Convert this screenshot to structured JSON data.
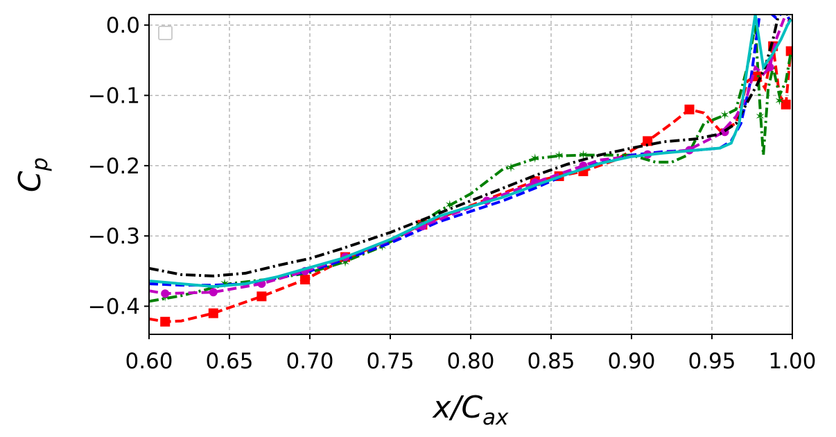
{
  "chart_data": {
    "type": "line",
    "xlabel_main": "x/C",
    "xlabel_sub": "ax",
    "ylabel_main": "C",
    "ylabel_sub": "p",
    "xlim": [
      0.6,
      1.0
    ],
    "ylim": [
      -0.44,
      0.015
    ],
    "xticks": [
      0.6,
      0.65,
      0.7,
      0.75,
      0.8,
      0.85,
      0.9,
      0.95,
      1.0
    ],
    "xtick_labels": [
      "0.60",
      "0.65",
      "0.70",
      "0.75",
      "0.80",
      "0.85",
      "0.90",
      "0.95",
      "1.00"
    ],
    "yticks": [
      0.0,
      -0.1,
      -0.2,
      -0.3,
      -0.4
    ],
    "ytick_labels": [
      "0.0",
      "−0.1",
      "−0.2",
      "−0.3",
      "−0.4"
    ],
    "grid": true,
    "legend": "top-left (empty)",
    "series": [
      {
        "color": "#ff0000",
        "style": "dashed",
        "marker": "square",
        "x": [
          0.6,
          0.61,
          0.62,
          0.64,
          0.67,
          0.697,
          0.72,
          0.75,
          0.77,
          0.79,
          0.81,
          0.84,
          0.855,
          0.87,
          0.89,
          0.91,
          0.925,
          0.936,
          0.945,
          0.955,
          0.965,
          0.972,
          0.978,
          0.983,
          0.988,
          0.992,
          0.996,
          0.999
        ],
        "y": [
          -0.418,
          -0.422,
          -0.421,
          -0.41,
          -0.386,
          -0.362,
          -0.335,
          -0.305,
          -0.284,
          -0.266,
          -0.248,
          -0.222,
          -0.215,
          -0.208,
          -0.192,
          -0.165,
          -0.14,
          -0.12,
          -0.125,
          -0.15,
          -0.14,
          -0.08,
          -0.07,
          -0.09,
          -0.03,
          -0.1,
          -0.113,
          -0.037
        ],
        "markers_x": [
          0.61,
          0.64,
          0.67,
          0.697,
          0.722,
          0.77,
          0.84,
          0.855,
          0.87,
          0.91,
          0.936,
          0.978,
          0.988,
          0.996,
          0.999
        ],
        "markers_y": [
          -0.422,
          -0.41,
          -0.386,
          -0.362,
          -0.33,
          -0.284,
          -0.222,
          -0.215,
          -0.208,
          -0.165,
          -0.12,
          -0.073,
          -0.03,
          -0.113,
          -0.037
        ]
      },
      {
        "color": "#008000",
        "style": "dash-dot",
        "marker": "star",
        "x": [
          0.6,
          0.62,
          0.65,
          0.68,
          0.7,
          0.72,
          0.745,
          0.76,
          0.78,
          0.8,
          0.82,
          0.84,
          0.855,
          0.87,
          0.88,
          0.9,
          0.915,
          0.925,
          0.935,
          0.945,
          0.958,
          0.965,
          0.972,
          0.977,
          0.98,
          0.982,
          0.985,
          0.988,
          0.992,
          0.996,
          0.999
        ],
        "y": [
          -0.393,
          -0.385,
          -0.368,
          -0.36,
          -0.352,
          -0.338,
          -0.315,
          -0.295,
          -0.265,
          -0.24,
          -0.205,
          -0.19,
          -0.186,
          -0.185,
          -0.185,
          -0.185,
          -0.195,
          -0.195,
          -0.185,
          -0.14,
          -0.128,
          -0.12,
          -0.06,
          0.0,
          -0.12,
          -0.185,
          -0.09,
          -0.06,
          -0.1,
          -0.08,
          -0.04
        ],
        "markers_x": [
          0.61,
          0.647,
          0.722,
          0.745,
          0.787,
          0.825,
          0.84,
          0.855,
          0.87,
          0.958,
          0.98,
          0.992
        ],
        "markers_y": [
          -0.387,
          -0.368,
          -0.338,
          -0.315,
          -0.256,
          -0.203,
          -0.19,
          -0.186,
          -0.185,
          -0.128,
          -0.13,
          -0.108
        ]
      },
      {
        "color": "#0000ff",
        "style": "dashed",
        "marker": "none",
        "x": [
          0.6,
          0.62,
          0.64,
          0.66,
          0.68,
          0.7,
          0.72,
          0.75,
          0.78,
          0.8,
          0.82,
          0.84,
          0.86,
          0.88,
          0.9,
          0.92,
          0.94,
          0.955,
          0.962,
          0.968,
          0.974,
          0.98,
          0.985,
          0.99,
          0.995,
          0.999
        ],
        "y": [
          -0.368,
          -0.37,
          -0.37,
          -0.368,
          -0.36,
          -0.35,
          -0.335,
          -0.31,
          -0.28,
          -0.265,
          -0.25,
          -0.232,
          -0.212,
          -0.196,
          -0.185,
          -0.18,
          -0.178,
          -0.175,
          -0.165,
          -0.14,
          -0.08,
          0.02,
          0.02,
          0.01,
          0.02,
          0.005
        ]
      },
      {
        "color": "#bf00bf",
        "style": "dashed",
        "marker": "circle",
        "x": [
          0.6,
          0.61,
          0.64,
          0.67,
          0.7,
          0.72,
          0.75,
          0.77,
          0.79,
          0.81,
          0.84,
          0.86,
          0.88,
          0.91,
          0.935,
          0.955,
          0.965,
          0.972,
          0.977,
          0.982,
          0.986,
          0.99,
          0.995,
          0.999
        ],
        "y": [
          -0.378,
          -0.382,
          -0.38,
          -0.368,
          -0.348,
          -0.332,
          -0.306,
          -0.286,
          -0.268,
          -0.25,
          -0.224,
          -0.208,
          -0.192,
          -0.184,
          -0.178,
          -0.155,
          -0.13,
          -0.1,
          -0.06,
          -0.07,
          -0.06,
          -0.02,
          0.01,
          0.005
        ],
        "markers_x": [
          0.61,
          0.64,
          0.67,
          0.697,
          0.722,
          0.77,
          0.81,
          0.84,
          0.87,
          0.91,
          0.936,
          0.958,
          0.986
        ],
        "markers_y": [
          -0.382,
          -0.38,
          -0.368,
          -0.35,
          -0.33,
          -0.286,
          -0.25,
          -0.224,
          -0.2,
          -0.184,
          -0.178,
          -0.152,
          -0.06
        ]
      },
      {
        "color": "#000000",
        "style": "dash-dot",
        "marker": "none",
        "x": [
          0.6,
          0.62,
          0.64,
          0.66,
          0.68,
          0.7,
          0.72,
          0.75,
          0.78,
          0.8,
          0.82,
          0.84,
          0.86,
          0.88,
          0.9,
          0.92,
          0.94,
          0.955,
          0.965,
          0.972,
          0.978,
          0.983,
          0.988,
          0.992,
          0.996,
          0.999
        ],
        "y": [
          -0.346,
          -0.355,
          -0.357,
          -0.353,
          -0.342,
          -0.332,
          -0.318,
          -0.295,
          -0.268,
          -0.25,
          -0.232,
          -0.214,
          -0.198,
          -0.185,
          -0.175,
          -0.166,
          -0.162,
          -0.155,
          -0.14,
          -0.11,
          -0.085,
          -0.06,
          -0.02,
          0.02,
          0.02,
          0.005
        ]
      },
      {
        "color": "#00bfbf",
        "style": "solid",
        "marker": "none",
        "x": [
          0.6,
          0.62,
          0.64,
          0.66,
          0.68,
          0.7,
          0.72,
          0.75,
          0.78,
          0.8,
          0.82,
          0.84,
          0.86,
          0.88,
          0.9,
          0.92,
          0.94,
          0.955,
          0.962,
          0.967,
          0.972,
          0.977,
          0.982,
          0.988,
          0.993,
          0.997,
          0.999
        ],
        "y": [
          -0.364,
          -0.368,
          -0.372,
          -0.368,
          -0.358,
          -0.345,
          -0.332,
          -0.305,
          -0.272,
          -0.258,
          -0.245,
          -0.228,
          -0.212,
          -0.197,
          -0.187,
          -0.182,
          -0.178,
          -0.175,
          -0.168,
          -0.14,
          -0.06,
          0.015,
          -0.06,
          -0.04,
          -0.02,
          0.0,
          0.008
        ]
      }
    ]
  }
}
